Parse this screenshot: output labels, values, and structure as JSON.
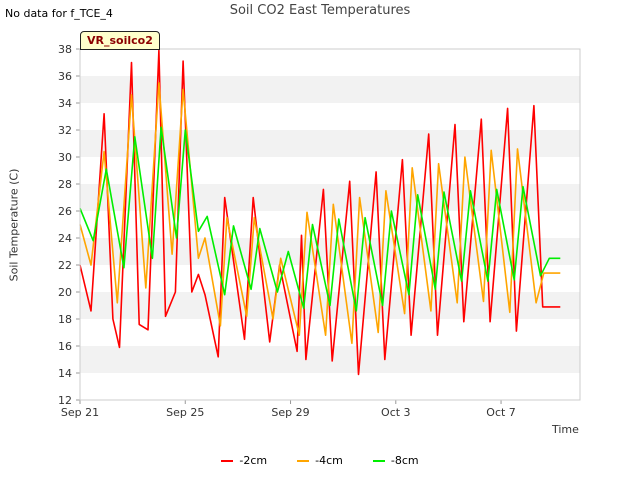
{
  "nodata_text": "No data for f_TCE_4",
  "badge_text": "VR_soilco2",
  "chart_data": {
    "type": "line",
    "title": "Soil CO2 East Temperatures",
    "xlabel": "Time",
    "ylabel": "Soil Temperature (C)",
    "ylim": [
      12,
      38
    ],
    "yticks": [
      12,
      14,
      16,
      18,
      20,
      22,
      24,
      26,
      28,
      30,
      32,
      34,
      36,
      38
    ],
    "xlim": [
      "2024-09-21",
      "2024-10-10"
    ],
    "xticks": [
      {
        "date": "2024-09-21",
        "label": "Sep 21"
      },
      {
        "date": "2024-09-25",
        "label": "Sep 25"
      },
      {
        "date": "2024-09-29",
        "label": "Sep 29"
      },
      {
        "date": "2024-10-03",
        "label": "Oct 3"
      },
      {
        "date": "2024-10-07",
        "label": "Oct 7"
      }
    ],
    "grid": "horizontal bands",
    "legend": "bottom",
    "series": [
      {
        "name": "-2cm",
        "color": "#ff0000",
        "x": [
          "2024-09-21 00:00",
          "2024-09-21 10:00",
          "2024-09-21 22:00",
          "2024-09-22 06:00",
          "2024-09-22 12:00",
          "2024-09-22 23:00",
          "2024-09-23 06:00",
          "2024-09-23 14:00",
          "2024-09-24 00:00",
          "2024-09-24 06:00",
          "2024-09-24 15:00",
          "2024-09-24 22:00",
          "2024-09-25 06:00",
          "2024-09-25 12:00",
          "2024-09-25 18:00",
          "2024-09-26 06:00",
          "2024-09-26 12:00",
          "2024-09-27 06:00",
          "2024-09-27 14:00",
          "2024-09-28 05:00",
          "2024-09-28 14:00",
          "2024-09-29 06:00",
          "2024-09-29 10:00",
          "2024-09-29 14:00",
          "2024-09-30 06:00",
          "2024-09-30 14:00",
          "2024-10-01 06:00",
          "2024-10-01 14:00",
          "2024-10-02 06:00",
          "2024-10-02 14:00",
          "2024-10-03 06:00",
          "2024-10-03 14:00",
          "2024-10-04 06:00",
          "2024-10-04 14:00",
          "2024-10-05 06:00",
          "2024-10-05 14:00",
          "2024-10-06 06:00",
          "2024-10-06 14:00",
          "2024-10-07 06:00",
          "2024-10-07 14:00",
          "2024-10-08 06:00",
          "2024-10-08 14:00",
          "2024-10-09 06:00"
        ],
        "y": [
          22.0,
          18.6,
          33.2,
          18.0,
          15.9,
          37.0,
          17.6,
          17.2,
          37.9,
          18.2,
          20.0,
          37.1,
          20.0,
          21.3,
          19.8,
          15.2,
          27.0,
          16.5,
          27.0,
          16.3,
          22.0,
          15.6,
          24.2,
          15.0,
          27.6,
          14.9,
          28.2,
          13.9,
          28.9,
          15.0,
          29.8,
          16.8,
          31.7,
          16.8,
          32.4,
          17.8,
          32.8,
          17.8,
          33.6,
          17.1,
          33.8,
          18.9,
          18.9
        ]
      },
      {
        "name": "-4cm",
        "color": "#ffa500",
        "x": [
          "2024-09-21 00:00",
          "2024-09-21 10:00",
          "2024-09-21 22:00",
          "2024-09-22 10:00",
          "2024-09-22 23:00",
          "2024-09-23 12:00",
          "2024-09-24 00:00",
          "2024-09-24 12:00",
          "2024-09-24 22:00",
          "2024-09-25 12:00",
          "2024-09-25 18:00",
          "2024-09-26 08:00",
          "2024-09-26 14:00",
          "2024-09-27 08:00",
          "2024-09-27 15:00",
          "2024-09-28 08:00",
          "2024-09-28 15:00",
          "2024-09-29 08:00",
          "2024-09-29 15:00",
          "2024-09-30 08:00",
          "2024-09-30 15:00",
          "2024-10-01 08:00",
          "2024-10-01 15:00",
          "2024-10-02 08:00",
          "2024-10-02 15:00",
          "2024-10-03 08:00",
          "2024-10-03 15:00",
          "2024-10-04 08:00",
          "2024-10-04 15:00",
          "2024-10-05 08:00",
          "2024-10-05 15:00",
          "2024-10-06 08:00",
          "2024-10-06 15:00",
          "2024-10-07 08:00",
          "2024-10-07 15:00",
          "2024-10-08 08:00",
          "2024-10-08 15:00",
          "2024-10-09 06:00"
        ],
        "y": [
          25.0,
          22.0,
          30.4,
          19.2,
          34.6,
          20.3,
          35.5,
          22.8,
          35.0,
          22.5,
          24.0,
          17.5,
          25.5,
          18.2,
          25.5,
          18.0,
          22.5,
          16.8,
          25.9,
          16.8,
          26.5,
          16.2,
          27.0,
          17.0,
          27.5,
          18.4,
          29.2,
          18.6,
          29.5,
          19.2,
          30.0,
          19.3,
          30.5,
          18.5,
          30.6,
          19.2,
          21.4,
          21.4
        ]
      },
      {
        "name": "-8cm",
        "color": "#00ee00",
        "x": [
          "2024-09-21 00:00",
          "2024-09-21 12:00",
          "2024-09-22 00:00",
          "2024-09-22 16:00",
          "2024-09-23 02:00",
          "2024-09-23 18:00",
          "2024-09-24 02:00",
          "2024-09-24 16:00",
          "2024-09-25 00:00",
          "2024-09-25 12:00",
          "2024-09-25 20:00",
          "2024-09-26 12:00",
          "2024-09-26 20:00",
          "2024-09-27 12:00",
          "2024-09-27 20:00",
          "2024-09-28 12:00",
          "2024-09-28 22:00",
          "2024-09-29 12:00",
          "2024-09-29 20:00",
          "2024-09-30 12:00",
          "2024-09-30 20:00",
          "2024-10-01 12:00",
          "2024-10-01 20:00",
          "2024-10-02 12:00",
          "2024-10-02 20:00",
          "2024-10-03 12:00",
          "2024-10-03 20:00",
          "2024-10-04 12:00",
          "2024-10-04 20:00",
          "2024-10-05 12:00",
          "2024-10-05 20:00",
          "2024-10-06 12:00",
          "2024-10-06 20:00",
          "2024-10-07 12:00",
          "2024-10-07 20:00",
          "2024-10-08 12:00",
          "2024-10-08 20:00",
          "2024-10-09 06:00"
        ],
        "y": [
          26.2,
          23.8,
          29.1,
          21.8,
          31.5,
          22.5,
          32.2,
          24.0,
          32.0,
          24.5,
          25.6,
          19.8,
          24.9,
          20.2,
          24.7,
          20.0,
          23.0,
          18.8,
          25.0,
          19.0,
          25.4,
          18.6,
          25.5,
          19.0,
          26.0,
          19.8,
          27.2,
          20.2,
          27.4,
          20.8,
          27.5,
          20.8,
          27.6,
          20.9,
          27.8,
          21.2,
          22.5,
          22.5
        ]
      }
    ]
  }
}
